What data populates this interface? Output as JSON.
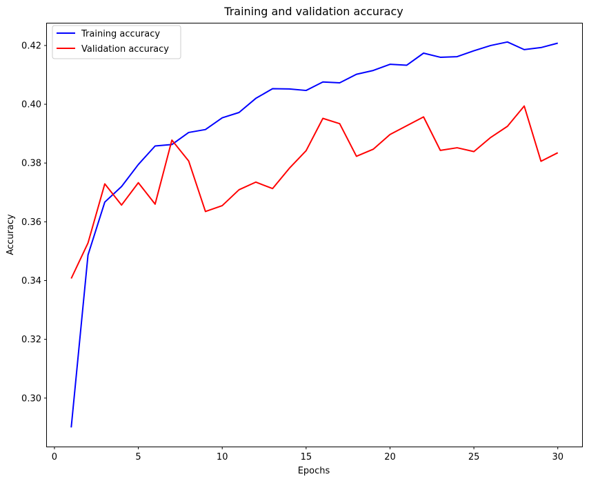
{
  "chart_data": {
    "type": "line",
    "title": "Training and validation accuracy",
    "xlabel": "Epochs",
    "ylabel": "Accuracy",
    "xlim": [
      -0.45,
      31.45
    ],
    "ylim": [
      0.2835,
      0.4275
    ],
    "xticks": [
      0,
      5,
      10,
      15,
      20,
      25,
      30
    ],
    "yticks": [
      0.3,
      0.32,
      0.34,
      0.36,
      0.38,
      0.4,
      0.42
    ],
    "grid": false,
    "legend_position": "top-left",
    "x": [
      1,
      2,
      3,
      4,
      5,
      6,
      7,
      8,
      9,
      10,
      11,
      12,
      13,
      14,
      15,
      16,
      17,
      18,
      19,
      20,
      21,
      22,
      23,
      24,
      25,
      26,
      27,
      28,
      29,
      30
    ],
    "series": [
      {
        "name": "Training accuracy",
        "color": "#0000ff",
        "values": [
          0.29,
          0.3487,
          0.3667,
          0.372,
          0.3795,
          0.3858,
          0.3863,
          0.3904,
          0.3914,
          0.3954,
          0.3972,
          0.402,
          0.4053,
          0.4052,
          0.4047,
          0.4076,
          0.4073,
          0.4102,
          0.4115,
          0.4136,
          0.4133,
          0.4174,
          0.416,
          0.4162,
          0.4182,
          0.42,
          0.4212,
          0.4186,
          0.4193,
          0.4208
        ]
      },
      {
        "name": "Validation accuracy",
        "color": "#ff0000",
        "values": [
          0.3407,
          0.3528,
          0.3729,
          0.3657,
          0.3733,
          0.366,
          0.3878,
          0.3807,
          0.3635,
          0.3655,
          0.3709,
          0.3735,
          0.3713,
          0.3782,
          0.3842,
          0.3952,
          0.3934,
          0.3823,
          0.3847,
          0.3897,
          0.3927,
          0.3957,
          0.3843,
          0.3852,
          0.3839,
          0.3887,
          0.3925,
          0.3994,
          0.3806,
          0.3835
        ]
      }
    ]
  }
}
